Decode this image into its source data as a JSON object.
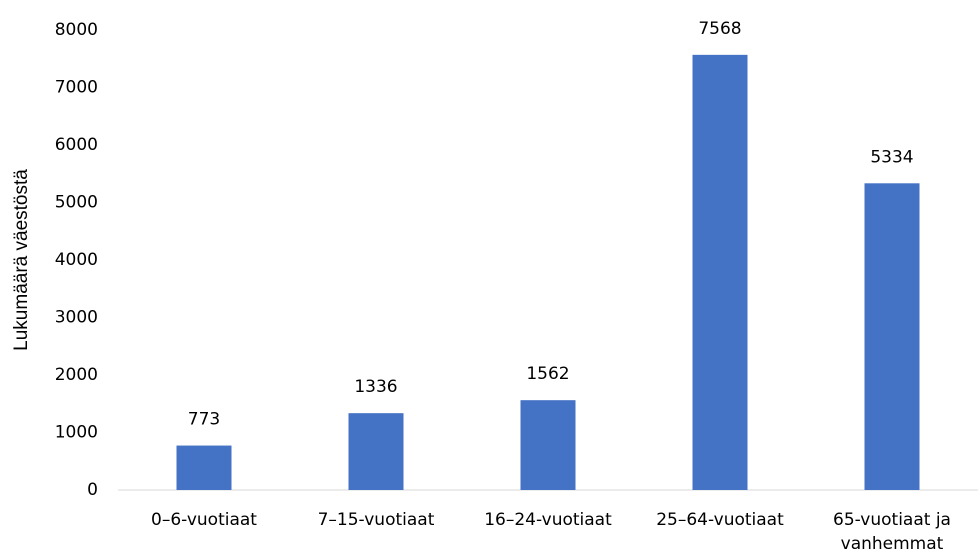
{
  "chart_data": {
    "type": "bar",
    "y_label": "Lukumäärä väestöstä",
    "categories": [
      "0–6-vuotiaat",
      "7–15-vuotiaat",
      "16–24-vuotiaat",
      "25–64-vuotiaat",
      "65-vuotiaat ja vanhemmat"
    ],
    "values": [
      773,
      1336,
      1562,
      7568,
      5334
    ],
    "color": "#4472c4",
    "ylim": [
      0,
      8000
    ],
    "yticks": [
      0,
      1000,
      2000,
      3000,
      4000,
      5000,
      6000,
      7000,
      8000
    ],
    "grid": false
  }
}
